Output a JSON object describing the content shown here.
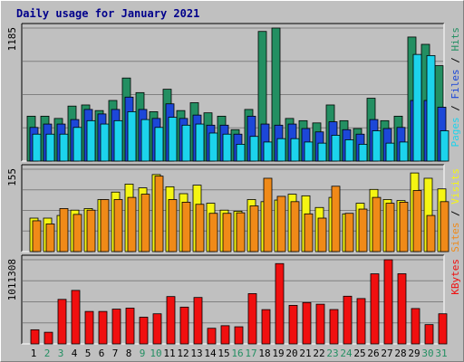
{
  "title": "Daily usage for January 2021",
  "colors": {
    "hits": "#238f62",
    "files": "#1c47d8",
    "pages": "#1cd3ec",
    "visits": "#f5f513",
    "sites": "#f08a18",
    "kbytes": "#f00f0f",
    "weekend_label": "#238f62",
    "weekday_label": "#000000",
    "title": "#00008b"
  },
  "chart_data": [
    {
      "type": "bar",
      "name": "hits-files-pages",
      "y_tick_label": "1185",
      "ylim": [
        0,
        1185
      ],
      "right_label_parts": [
        {
          "text": "Pages",
          "color": "#1cd3ec"
        },
        {
          "text": " / ",
          "color": "#000000"
        },
        {
          "text": "Files",
          "color": "#1c47d8"
        },
        {
          "text": " / ",
          "color": "#000000"
        },
        {
          "text": "Hits",
          "color": "#238f62"
        }
      ],
      "series": [
        {
          "name": "Hits",
          "values": [
            400,
            400,
            380,
            490,
            500,
            450,
            540,
            740,
            610,
            440,
            640,
            450,
            520,
            430,
            400,
            280,
            460,
            1155,
            1190,
            380,
            360,
            340,
            500,
            360,
            290,
            560,
            360,
            400,
            1105,
            1040,
            850
          ]
        },
        {
          "name": "Files",
          "values": [
            300,
            330,
            330,
            370,
            460,
            420,
            460,
            570,
            460,
            380,
            510,
            380,
            410,
            320,
            320,
            240,
            400,
            330,
            320,
            330,
            290,
            260,
            350,
            280,
            240,
            370,
            290,
            300,
            540,
            540,
            480
          ]
        },
        {
          "name": "Pages",
          "values": [
            240,
            240,
            240,
            300,
            360,
            330,
            360,
            440,
            370,
            300,
            390,
            320,
            330,
            250,
            240,
            150,
            220,
            170,
            200,
            200,
            170,
            160,
            230,
            190,
            150,
            270,
            160,
            170,
            950,
            940,
            270
          ]
        }
      ]
    },
    {
      "type": "bar",
      "name": "visits-sites",
      "y_tick_label": "155",
      "ylim": [
        0,
        155
      ],
      "right_label_parts": [
        {
          "text": "Sites",
          "color": "#f08a18"
        },
        {
          "text": " / ",
          "color": "#000000"
        },
        {
          "text": "Visits",
          "color": "#f5f513"
        }
      ],
      "series": [
        {
          "name": "Visits",
          "values": [
            63,
            63,
            68,
            78,
            81,
            98,
            112,
            127,
            120,
            145,
            122,
            109,
            125,
            91,
            78,
            76,
            98,
            94,
            97,
            108,
            105,
            83,
            102,
            71,
            91,
            117,
            98,
            96,
            148,
            138,
            118
          ]
        },
        {
          "name": "Sites",
          "values": [
            58,
            52,
            81,
            70,
            78,
            98,
            98,
            102,
            108,
            142,
            98,
            93,
            89,
            72,
            72,
            73,
            86,
            138,
            104,
            94,
            71,
            63,
            123,
            72,
            80,
            102,
            91,
            93,
            115,
            68,
            94
          ]
        }
      ]
    },
    {
      "type": "bar",
      "name": "kbytes",
      "y_tick_label": "1011308",
      "ylim": [
        0,
        1011308
      ],
      "right_label_parts": [
        {
          "text": "KBytes",
          "color": "#f00f0f"
        }
      ],
      "series": [
        {
          "name": "KBytes",
          "values": [
            170000,
            140000,
            535000,
            643000,
            390000,
            390000,
            418000,
            430000,
            321000,
            362000,
            569000,
            442000,
            558000,
            188000,
            219000,
            206000,
            604000,
            412000,
            965000,
            463000,
            497000,
            477000,
            413000,
            573000,
            545000,
            842000,
            1011308,
            843000,
            425000,
            232000,
            362000
          ]
        }
      ]
    }
  ],
  "x_days": [
    "1",
    "2",
    "3",
    "4",
    "5",
    "6",
    "7",
    "8",
    "9",
    "10",
    "11",
    "12",
    "13",
    "14",
    "15",
    "16",
    "17",
    "18",
    "19",
    "20",
    "21",
    "22",
    "23",
    "24",
    "25",
    "26",
    "27",
    "28",
    "29",
    "30",
    "31"
  ],
  "weekend_days": [
    2,
    3,
    9,
    10,
    16,
    17,
    23,
    24,
    30,
    31
  ]
}
